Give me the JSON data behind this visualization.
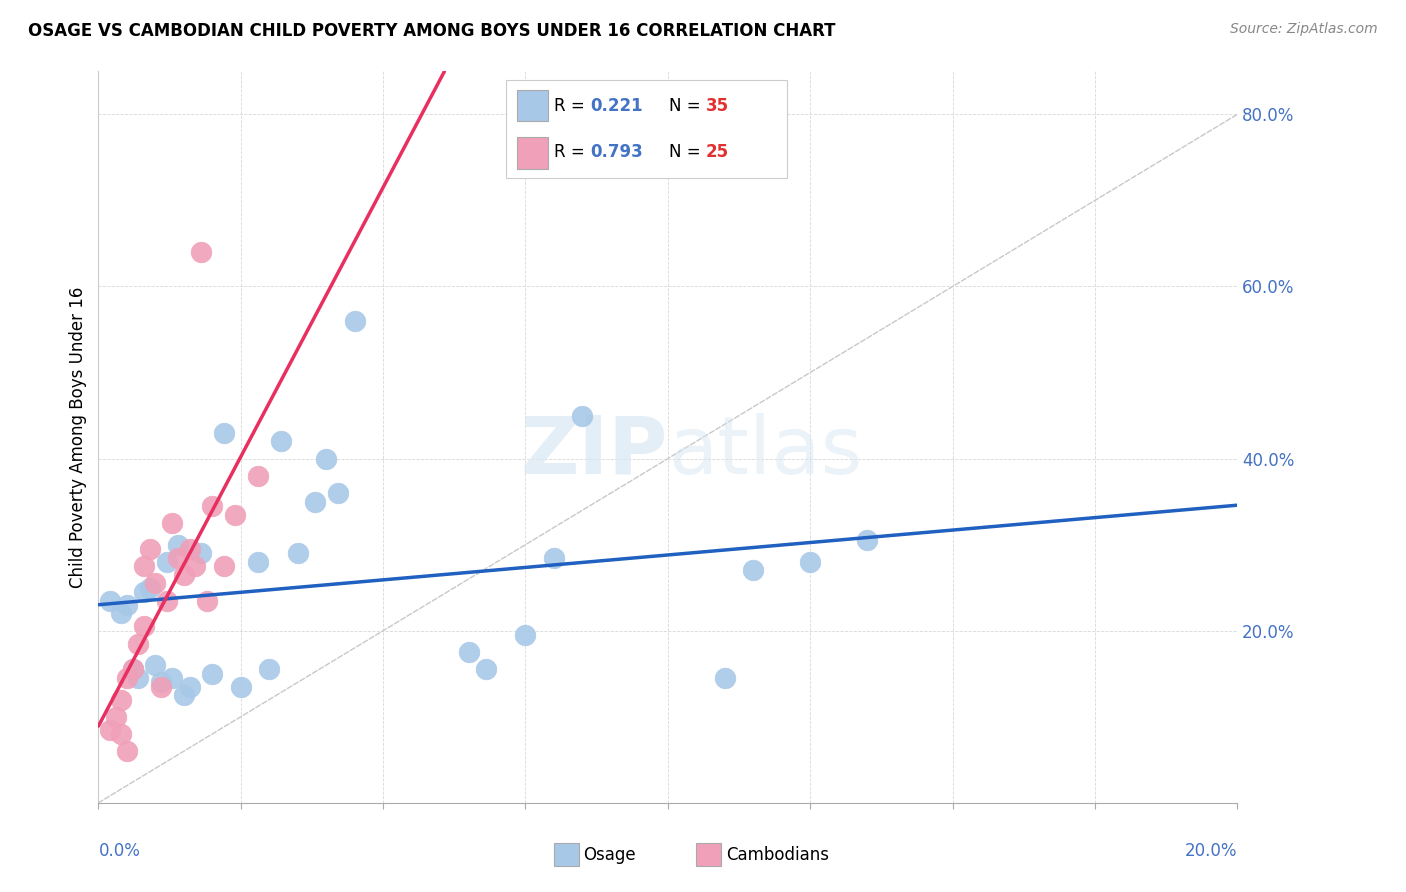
{
  "title": "OSAGE VS CAMBODIAN CHILD POVERTY AMONG BOYS UNDER 16 CORRELATION CHART",
  "source": "Source: ZipAtlas.com",
  "ylabel": "Child Poverty Among Boys Under 16",
  "xlim": [
    0.0,
    0.2
  ],
  "ylim": [
    0.0,
    0.85
  ],
  "legend_R_osage": "0.221",
  "legend_N_osage": "35",
  "legend_R_camb": "0.793",
  "legend_N_camb": "25",
  "osage_color": "#a8c8e8",
  "cambodian_color": "#f0a0b8",
  "trendline_osage_color": "#2060c0",
  "trendline_camb_color": "#e83060",
  "diagonal_color": "#c8c8c8",
  "watermark_color": "#d8e8f5",
  "osage_x": [
    0.002,
    0.004,
    0.005,
    0.006,
    0.007,
    0.008,
    0.009,
    0.01,
    0.011,
    0.012,
    0.013,
    0.014,
    0.015,
    0.016,
    0.018,
    0.02,
    0.022,
    0.025,
    0.028,
    0.03,
    0.032,
    0.035,
    0.038,
    0.04,
    0.042,
    0.045,
    0.065,
    0.068,
    0.075,
    0.08,
    0.085,
    0.11,
    0.115,
    0.125,
    0.135
  ],
  "osage_y": [
    0.235,
    0.22,
    0.23,
    0.155,
    0.145,
    0.245,
    0.25,
    0.16,
    0.14,
    0.28,
    0.145,
    0.3,
    0.125,
    0.135,
    0.29,
    0.15,
    0.43,
    0.135,
    0.28,
    0.155,
    0.42,
    0.29,
    0.35,
    0.4,
    0.36,
    0.56,
    0.175,
    0.155,
    0.195,
    0.285,
    0.45,
    0.145,
    0.27,
    0.28,
    0.305
  ],
  "camb_x": [
    0.002,
    0.003,
    0.004,
    0.004,
    0.005,
    0.005,
    0.006,
    0.007,
    0.008,
    0.008,
    0.009,
    0.01,
    0.011,
    0.012,
    0.013,
    0.014,
    0.015,
    0.016,
    0.017,
    0.018,
    0.019,
    0.02,
    0.022,
    0.024,
    0.028
  ],
  "camb_y": [
    0.085,
    0.1,
    0.08,
    0.12,
    0.145,
    0.06,
    0.155,
    0.185,
    0.205,
    0.275,
    0.295,
    0.255,
    0.135,
    0.235,
    0.325,
    0.285,
    0.265,
    0.295,
    0.275,
    0.64,
    0.235,
    0.345,
    0.275,
    0.335,
    0.38
  ]
}
